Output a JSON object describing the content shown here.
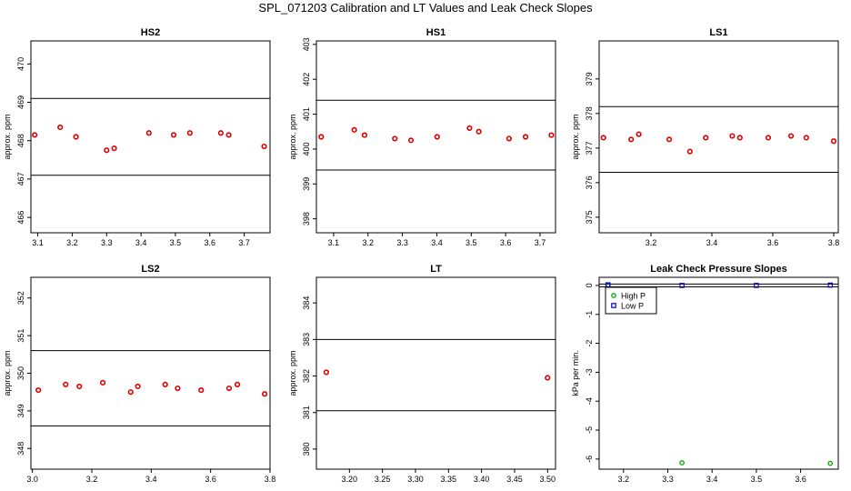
{
  "title": "SPL_071203  Calibration and LT Values and Leak Check Slopes",
  "colors": {
    "points": "#dd0000",
    "high_p": "#00aa00",
    "low_p": "#0000cc",
    "lines": "#000000"
  },
  "chart_data": [
    {
      "type": "scatter",
      "title": "HS2",
      "ylabel": "approx. ppm",
      "xlim": [
        3.08,
        3.775
      ],
      "ylim": [
        465.6,
        470.6
      ],
      "xticks": [
        "3.1",
        "3.2",
        "3.3",
        "3.4",
        "3.5",
        "3.6",
        "3.7"
      ],
      "yticks": [
        "466",
        "467",
        "468",
        "469",
        "470"
      ],
      "hlines": [
        469.1,
        467.1
      ],
      "x": [
        3.091,
        3.165,
        3.211,
        3.3,
        3.322,
        3.423,
        3.495,
        3.542,
        3.632,
        3.655,
        3.758
      ],
      "y": [
        468.15,
        468.35,
        468.1,
        467.75,
        467.8,
        468.2,
        468.15,
        468.2,
        468.2,
        468.15,
        467.85
      ]
    },
    {
      "type": "scatter",
      "title": "HS1",
      "ylabel": "approx. ppm",
      "xlim": [
        3.05,
        3.745
      ],
      "ylim": [
        397.6,
        403.1
      ],
      "xticks": [
        "3.1",
        "3.2",
        "3.3",
        "3.4",
        "3.5",
        "3.6",
        "3.7"
      ],
      "yticks": [
        "398",
        "399",
        "400",
        "401",
        "402",
        "403"
      ],
      "hlines": [
        401.4,
        399.4
      ],
      "x": [
        3.064,
        3.16,
        3.19,
        3.278,
        3.325,
        3.401,
        3.495,
        3.522,
        3.61,
        3.658,
        3.733
      ],
      "y": [
        400.35,
        400.55,
        400.4,
        400.3,
        400.25,
        400.35,
        400.6,
        400.5,
        400.3,
        400.35,
        400.4
      ]
    },
    {
      "type": "scatter",
      "title": "LS1",
      "ylabel": "approx. ppm",
      "xlim": [
        3.03,
        3.815
      ],
      "ylim": [
        374.55,
        380.1
      ],
      "xticks": [
        "3.2",
        "3.4",
        "3.6",
        "3.8"
      ],
      "yticks": [
        "375",
        "376",
        "377",
        "378",
        "379"
      ],
      "hlines": [
        378.2,
        376.3
      ],
      "x": [
        3.044,
        3.135,
        3.16,
        3.26,
        3.328,
        3.38,
        3.467,
        3.492,
        3.585,
        3.66,
        3.71,
        3.8
      ],
      "y": [
        377.3,
        377.25,
        377.4,
        377.25,
        376.9,
        377.3,
        377.35,
        377.3,
        377.3,
        377.35,
        377.3,
        377.2
      ]
    },
    {
      "type": "scatter",
      "title": "LS2",
      "ylabel": "approx. ppm",
      "xlim": [
        2.995,
        3.8
      ],
      "ylim": [
        347.45,
        352.55
      ],
      "xticks": [
        "3.0",
        "3.2",
        "3.4",
        "3.6",
        "3.8"
      ],
      "yticks": [
        "348",
        "349",
        "350",
        "351",
        "352"
      ],
      "hlines": [
        350.6,
        348.6
      ],
      "x": [
        3.02,
        3.112,
        3.158,
        3.237,
        3.331,
        3.355,
        3.447,
        3.489,
        3.568,
        3.662,
        3.69,
        3.782
      ],
      "y": [
        349.55,
        349.7,
        349.65,
        349.75,
        349.5,
        349.65,
        349.7,
        349.6,
        349.55,
        349.6,
        349.7,
        349.45
      ]
    },
    {
      "type": "scatter",
      "title": "LT",
      "ylabel": "approx. ppm",
      "xlim": [
        3.15,
        3.512
      ],
      "ylim": [
        379.45,
        384.7
      ],
      "xticks": [
        "3.20",
        "3.25",
        "3.30",
        "3.35",
        "3.40",
        "3.45",
        "3.50"
      ],
      "yticks": [
        "380",
        "381",
        "382",
        "383",
        "384"
      ],
      "hlines": [
        383.0,
        381.05
      ],
      "x": [
        3.165,
        3.5
      ],
      "y": [
        382.1,
        381.95
      ]
    },
    {
      "type": "scatter",
      "title": "Leak Check Pressure Slopes",
      "ylabel": "kPa per min.",
      "xlim": [
        3.145,
        3.685
      ],
      "ylim": [
        -6.35,
        0.28
      ],
      "xticks": [
        "3.2",
        "3.3",
        "3.4",
        "3.5",
        "3.6"
      ],
      "yticks": [
        "0",
        "-1",
        "-2",
        "-3",
        "-4",
        "-5",
        "-6"
      ],
      "hlines": [
        0.05,
        -0.05
      ],
      "legend": "top-left",
      "series": [
        {
          "name": "High P",
          "x": [
            3.165,
            3.332,
            3.667
          ],
          "y": [
            0.02,
            -6.13,
            -6.15
          ]
        },
        {
          "name": "Low P",
          "x": [
            3.165,
            3.332,
            3.5,
            3.667
          ],
          "y": [
            0.02,
            0.0,
            0.0,
            0.01
          ]
        }
      ]
    }
  ]
}
